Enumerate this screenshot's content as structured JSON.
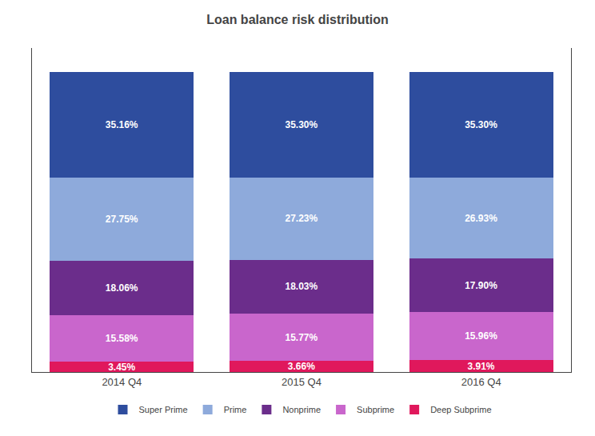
{
  "chart_data": {
    "type": "bar",
    "title": "Loan balance risk distribution",
    "categories": [
      "2014 Q4",
      "2015 Q4",
      "2016 Q4"
    ],
    "series": [
      {
        "name": "Deep Subprime",
        "color": "#e0185c",
        "values": [
          3.45,
          3.66,
          3.91
        ],
        "value_labels": [
          "3.45%",
          "3.66%",
          "3.91%"
        ]
      },
      {
        "name": "Subprime",
        "color": "#c966cc",
        "values": [
          15.58,
          15.77,
          15.96
        ],
        "value_labels": [
          "15.58%",
          "15.77%",
          "15.96%"
        ]
      },
      {
        "name": "Nonprime",
        "color": "#6b2d8b",
        "values": [
          18.06,
          18.03,
          17.9
        ],
        "value_labels": [
          "18.06%",
          "18.03%",
          "17.90%"
        ]
      },
      {
        "name": "Prime",
        "color": "#8eaadb",
        "values": [
          27.75,
          27.23,
          26.93
        ],
        "value_labels": [
          "27.75%",
          "27.23%",
          "26.93%"
        ]
      },
      {
        "name": "Super Prime",
        "color": "#2e4d9e",
        "values": [
          35.16,
          35.3,
          35.3
        ],
        "value_labels": [
          "35.16%",
          "35.30%",
          "35.30%"
        ]
      }
    ],
    "stacked": true,
    "data_labels": true,
    "ylim": [
      0,
      108
    ],
    "yticks": [],
    "tick_labels": "x",
    "grid": false,
    "legend": "bottom"
  }
}
